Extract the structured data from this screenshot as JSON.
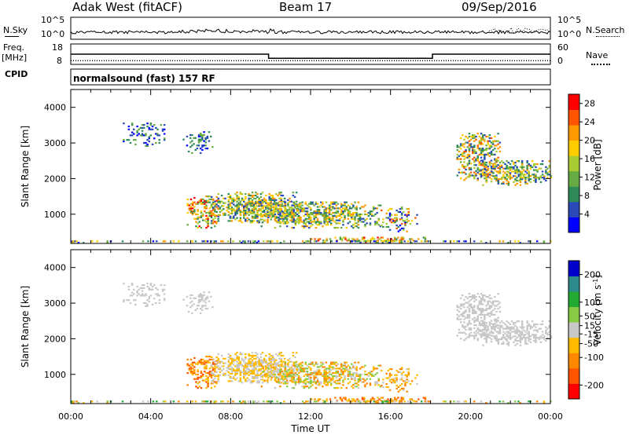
{
  "header": {
    "title": "Adak West (fitACF)",
    "beam": "Beam 17",
    "date": "09/Sep/2016"
  },
  "strip_labels": {
    "nsky": "N.Sky",
    "nsearch": "N.Search",
    "freq": "Freq.",
    "freq_unit": "[MHz]",
    "nave": "Nave",
    "cpid": "CPID",
    "mode": "normalsound (fast) 157 RF"
  },
  "strip_ticks": {
    "noise_left": [
      "10^5",
      "10^0"
    ],
    "noise_right": [
      "10^5",
      "10^0"
    ],
    "freq_left": [
      "18",
      "8"
    ],
    "nave_right": [
      "60",
      "0"
    ]
  },
  "colors": {
    "power_scale": [
      "#0000ff",
      "#2a4ab8",
      "#2e8b57",
      "#66aa44",
      "#aacc33",
      "#ffcc00",
      "#ff9900",
      "#ff5500",
      "#ff0000"
    ],
    "velocity_scale": [
      "#ff0000",
      "#ff5500",
      "#ff8800",
      "#ffbb00",
      "#c8c8c8",
      "#88cc44",
      "#22aa33",
      "#2e8b8b",
      "#0000cc"
    ]
  },
  "chart_data": [
    {
      "type": "line",
      "name": "noise-strip",
      "series": [
        {
          "name": "N.Sky"
        },
        {
          "name": "N.Search"
        }
      ],
      "y_scale": "log",
      "ylim": [
        1,
        100000
      ],
      "ticks": [
        "10^0",
        "10^5"
      ]
    },
    {
      "type": "line",
      "name": "freq-nave-strip",
      "series": [
        {
          "name": "Freq.",
          "x": [
            0,
            9.9,
            9.9,
            18.1,
            18.1,
            24
          ],
          "values": [
            13,
            13,
            11,
            11,
            13,
            13
          ]
        },
        {
          "name": "Nave",
          "x": [
            0,
            24
          ],
          "values": [
            11,
            11
          ]
        }
      ],
      "ylim_freq": [
        8,
        18
      ],
      "ylim_nave": [
        0,
        60
      ]
    },
    {
      "type": "heatmap",
      "name": "power",
      "xlabel": "",
      "ylabel": "Slant Range [km]",
      "xlim": [
        0,
        24
      ],
      "ylim": [
        180,
        4500
      ],
      "y_ticks": [
        "4000",
        "3000",
        "2000",
        "1000"
      ],
      "colorbar_label": "Power [dB]",
      "colorbar_ticks": [
        "28",
        "24",
        "20",
        "16",
        "12",
        "8",
        "4"
      ],
      "colorbar_range": [
        0,
        30
      ]
    },
    {
      "type": "heatmap",
      "name": "velocity",
      "xlabel": "Time UT",
      "ylabel": "Slant Range [km]",
      "xlim": [
        0,
        24
      ],
      "ylim": [
        180,
        4500
      ],
      "x_ticks": [
        "00:00",
        "04:00",
        "08:00",
        "12:00",
        "16:00",
        "20:00",
        "00:00"
      ],
      "y_ticks": [
        "4000",
        "3000",
        "2000",
        "1000"
      ],
      "colorbar_label": "Velocity [m s^-1]",
      "colorbar_ticks": [
        "200",
        "100",
        "50",
        "15",
        "-15",
        "-50",
        "-100",
        "-200"
      ],
      "colorbar_range": [
        -250,
        250
      ]
    }
  ]
}
